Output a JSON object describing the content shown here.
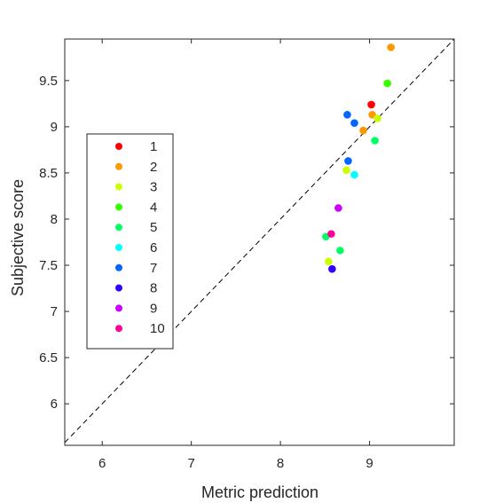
{
  "chart_data": {
    "type": "scatter",
    "xlabel": "Metric prediction",
    "ylabel": "Subjective score",
    "xlim": [
      5.58,
      9.95
    ],
    "ylim": [
      5.55,
      9.95
    ],
    "x_ticks": [
      6,
      7,
      8,
      9
    ],
    "y_ticks": [
      6,
      6.5,
      7,
      7.5,
      8,
      8.5,
      9,
      9.5
    ],
    "x_tick_labels": [
      "6",
      "7",
      "8",
      "9"
    ],
    "y_tick_labels": [
      "6",
      "6.5",
      "7",
      "7.5",
      "8",
      "8.5",
      "9",
      "9.5"
    ],
    "reference_line": "y = x (dashed)",
    "grid": false,
    "legend_position": "left",
    "series": [
      {
        "name": "1",
        "color": "#ff0000",
        "points": [
          [
            9.02,
            9.24
          ]
        ]
      },
      {
        "name": "2",
        "color": "#ff9900",
        "points": [
          [
            9.24,
            9.86
          ],
          [
            9.03,
            9.13
          ],
          [
            8.93,
            8.96
          ]
        ]
      },
      {
        "name": "3",
        "color": "#ccff00",
        "points": [
          [
            9.09,
            9.09
          ],
          [
            8.74,
            8.53
          ],
          [
            8.54,
            7.54
          ]
        ]
      },
      {
        "name": "4",
        "color": "#33ff00",
        "points": [
          [
            9.2,
            9.47
          ]
        ]
      },
      {
        "name": "5",
        "color": "#00ff66",
        "points": [
          [
            9.06,
            8.85
          ],
          [
            8.51,
            7.81
          ],
          [
            8.67,
            7.66
          ]
        ]
      },
      {
        "name": "6",
        "color": "#00ffff",
        "points": [
          [
            8.83,
            8.48
          ]
        ]
      },
      {
        "name": "7",
        "color": "#0066ff",
        "points": [
          [
            8.75,
            9.13
          ],
          [
            8.83,
            9.04
          ],
          [
            8.76,
            8.63
          ]
        ]
      },
      {
        "name": "8",
        "color": "#3300ff",
        "points": [
          [
            8.58,
            7.46
          ]
        ]
      },
      {
        "name": "9",
        "color": "#cc00ff",
        "points": [
          [
            8.65,
            8.12
          ]
        ]
      },
      {
        "name": "10",
        "color": "#ff0099",
        "points": [
          [
            8.57,
            7.84
          ]
        ]
      }
    ]
  }
}
